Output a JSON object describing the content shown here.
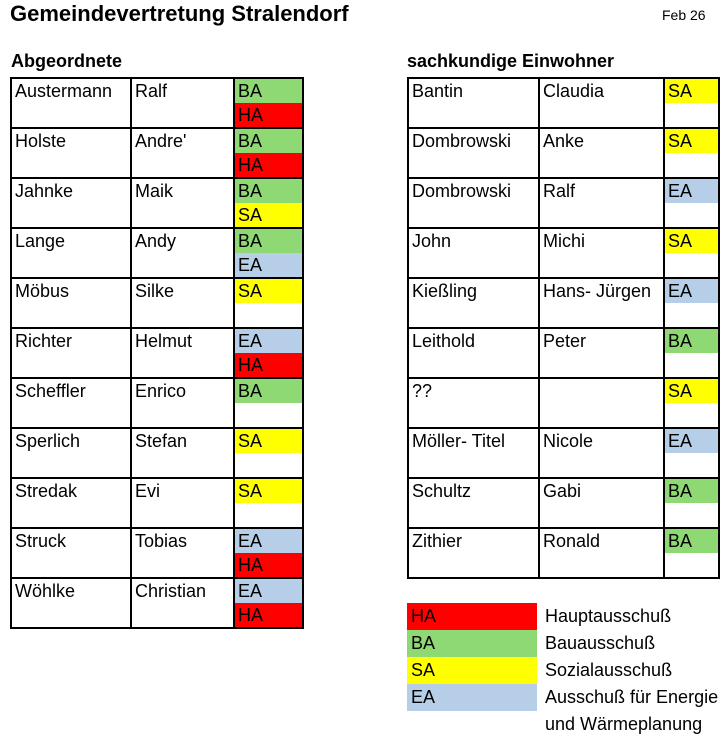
{
  "header": {
    "title": "Gemeindevertretung Stralendorf",
    "date": "Feb 26"
  },
  "colors": {
    "HA": "#ff0000",
    "BA": "#8ed973",
    "SA": "#ffff00",
    "EA": "#b6cee8"
  },
  "tables": {
    "left": {
      "heading": "Abgeordnete",
      "rows": [
        {
          "last_name": "Austermann",
          "first_name": "Ralf",
          "committees": [
            "BA",
            "HA"
          ]
        },
        {
          "last_name": "Holste",
          "first_name": "Andre'",
          "committees": [
            "BA",
            "HA"
          ]
        },
        {
          "last_name": "Jahnke",
          "first_name": "Maik",
          "committees": [
            "BA",
            "SA"
          ]
        },
        {
          "last_name": "Lange",
          "first_name": "Andy",
          "committees": [
            "BA",
            "EA"
          ]
        },
        {
          "last_name": "Möbus",
          "first_name": "Silke",
          "committees": [
            "SA"
          ]
        },
        {
          "last_name": "Richter",
          "first_name": "Helmut",
          "committees": [
            "EA",
            "HA"
          ]
        },
        {
          "last_name": "Scheffler",
          "first_name": "Enrico",
          "committees": [
            "BA"
          ]
        },
        {
          "last_name": "Sperlich",
          "first_name": "Stefan",
          "committees": [
            "SA"
          ]
        },
        {
          "last_name": "Stredak",
          "first_name": "Evi",
          "committees": [
            "SA"
          ]
        },
        {
          "last_name": "Struck",
          "first_name": "Tobias",
          "committees": [
            "EA",
            "HA"
          ]
        },
        {
          "last_name": "Wöhlke",
          "first_name": "Christian",
          "committees": [
            "EA",
            "HA"
          ]
        }
      ]
    },
    "right": {
      "heading": "sachkundige Einwohner",
      "rows": [
        {
          "last_name": "Bantin",
          "first_name": "Claudia",
          "committees": [
            "SA"
          ]
        },
        {
          "last_name": "Dombrowski",
          "first_name": "Anke",
          "committees": [
            "SA"
          ]
        },
        {
          "last_name": "Dombrowski",
          "first_name": "Ralf",
          "committees": [
            "EA"
          ]
        },
        {
          "last_name": "John",
          "first_name": "Michi",
          "committees": [
            "SA"
          ]
        },
        {
          "last_name": "Kießling",
          "first_name": "Hans- Jürgen",
          "committees": [
            "EA"
          ]
        },
        {
          "last_name": "Leithold",
          "first_name": "Peter",
          "committees": [
            "BA"
          ]
        },
        {
          "last_name": "??",
          "first_name": "",
          "committees": [
            "SA"
          ]
        },
        {
          "last_name": "Möller- Titel",
          "first_name": "Nicole",
          "committees": [
            "EA"
          ]
        },
        {
          "last_name": "Schultz",
          "first_name": "Gabi",
          "committees": [
            "BA"
          ]
        },
        {
          "last_name": "Zithier",
          "first_name": "Ronald",
          "committees": [
            "BA"
          ]
        }
      ]
    }
  },
  "legend": {
    "items": [
      {
        "code": "HA",
        "label_lines": [
          "Hauptausschuß"
        ]
      },
      {
        "code": "BA",
        "label_lines": [
          "Bauausschuß"
        ]
      },
      {
        "code": "SA",
        "label_lines": [
          "Sozialausschuß"
        ]
      },
      {
        "code": "EA",
        "label_lines": [
          "Ausschuß für Energie",
          "und Wärmeplanung"
        ]
      }
    ]
  }
}
